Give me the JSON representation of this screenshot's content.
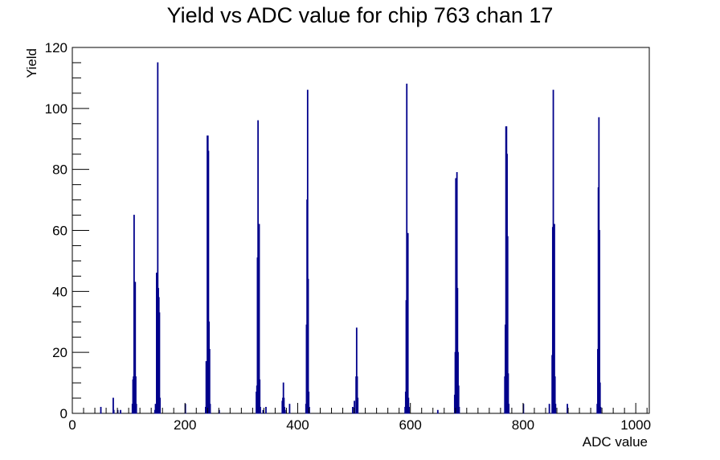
{
  "chart_data": {
    "type": "bar",
    "title": "Yield vs ADC value for chip 763 chan 17",
    "xlabel": "ADC value",
    "ylabel": "Yield",
    "xlim": [
      0,
      1024
    ],
    "ylim": [
      0,
      120
    ],
    "xticks": [
      0,
      200,
      400,
      600,
      800,
      1000
    ],
    "yticks": [
      0,
      20,
      40,
      60,
      80,
      100,
      120
    ],
    "grid": false,
    "legend": "none",
    "series": [
      {
        "color": "#00008b",
        "bins": [
          [
            50,
            2
          ],
          [
            72,
            5
          ],
          [
            73,
            1
          ],
          [
            80,
            1
          ],
          [
            85,
            1
          ],
          [
            106,
            3
          ],
          [
            107,
            11
          ],
          [
            108,
            12
          ],
          [
            109,
            65
          ],
          [
            110,
            43
          ],
          [
            111,
            43
          ],
          [
            112,
            12
          ],
          [
            113,
            3
          ],
          [
            146,
            1
          ],
          [
            147,
            3
          ],
          [
            148,
            1
          ],
          [
            149,
            46
          ],
          [
            150,
            46
          ],
          [
            151,
            115
          ],
          [
            152,
            41
          ],
          [
            153,
            38
          ],
          [
            154,
            33
          ],
          [
            155,
            5
          ],
          [
            200,
            3
          ],
          [
            236,
            2
          ],
          [
            237,
            17
          ],
          [
            238,
            16
          ],
          [
            239,
            91
          ],
          [
            240,
            91
          ],
          [
            241,
            86
          ],
          [
            242,
            30
          ],
          [
            243,
            21
          ],
          [
            244,
            3
          ],
          [
            260,
            1
          ],
          [
            326,
            7
          ],
          [
            327,
            9
          ],
          [
            328,
            51
          ],
          [
            329,
            96
          ],
          [
            330,
            41
          ],
          [
            331,
            62
          ],
          [
            332,
            11
          ],
          [
            333,
            2
          ],
          [
            338,
            1
          ],
          [
            343,
            2
          ],
          [
            372,
            4
          ],
          [
            373,
            5
          ],
          [
            374,
            10
          ],
          [
            375,
            5
          ],
          [
            376,
            2
          ],
          [
            377,
            1
          ],
          [
            385,
            3
          ],
          [
            414,
            3
          ],
          [
            415,
            29
          ],
          [
            416,
            70
          ],
          [
            417,
            106
          ],
          [
            418,
            44
          ],
          [
            419,
            7
          ],
          [
            420,
            2
          ],
          [
            497,
            2
          ],
          [
            500,
            4
          ],
          [
            503,
            12
          ],
          [
            504,
            28
          ],
          [
            505,
            12
          ],
          [
            506,
            5
          ],
          [
            590,
            2
          ],
          [
            591,
            7
          ],
          [
            592,
            37
          ],
          [
            593,
            108
          ],
          [
            594,
            59
          ],
          [
            595,
            59
          ],
          [
            596,
            5
          ],
          [
            597,
            2
          ],
          [
            648,
            1
          ],
          [
            678,
            6
          ],
          [
            679,
            20
          ],
          [
            680,
            77
          ],
          [
            681,
            77
          ],
          [
            682,
            79
          ],
          [
            683,
            41
          ],
          [
            684,
            20
          ],
          [
            685,
            9
          ],
          [
            686,
            2
          ],
          [
            767,
            12
          ],
          [
            768,
            29
          ],
          [
            769,
            94
          ],
          [
            770,
            94
          ],
          [
            771,
            85
          ],
          [
            772,
            58
          ],
          [
            773,
            13
          ],
          [
            774,
            3
          ],
          [
            800,
            3
          ],
          [
            846,
            3
          ],
          [
            851,
            19
          ],
          [
            852,
            61
          ],
          [
            853,
            106
          ],
          [
            854,
            44
          ],
          [
            855,
            62
          ],
          [
            856,
            12
          ],
          [
            857,
            3
          ],
          [
            878,
            3
          ],
          [
            931,
            3
          ],
          [
            932,
            21
          ],
          [
            933,
            74
          ],
          [
            934,
            97
          ],
          [
            935,
            60
          ],
          [
            936,
            10
          ],
          [
            937,
            2
          ]
        ]
      }
    ]
  }
}
